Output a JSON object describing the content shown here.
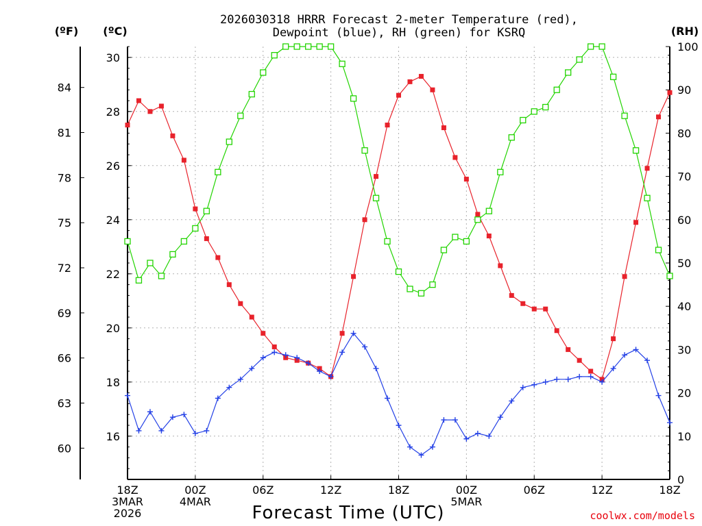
{
  "chart_data": {
    "type": "line",
    "title_lines": [
      "2026030318 HRRR Forecast 2-meter Temperature (red),",
      "Dewpoint (blue), RH (green) for KSRQ"
    ],
    "xlabel": "Forecast Time (UTC)",
    "unit_labels": {
      "fahrenheit": "(ºF)",
      "celsius": "(ºC)",
      "rh": "(RH)"
    },
    "credit": "coolwx.com/models",
    "x_tick_labels": [
      {
        "hour": 0,
        "lines": [
          "18Z",
          "3MAR",
          "2026"
        ]
      },
      {
        "hour": 6,
        "lines": [
          "00Z",
          "4MAR"
        ]
      },
      {
        "hour": 12,
        "lines": [
          "06Z"
        ]
      },
      {
        "hour": 18,
        "lines": [
          "12Z"
        ]
      },
      {
        "hour": 24,
        "lines": [
          "18Z"
        ]
      },
      {
        "hour": 30,
        "lines": [
          "00Z",
          "5MAR"
        ]
      },
      {
        "hour": 36,
        "lines": [
          "06Z"
        ]
      },
      {
        "hour": 42,
        "lines": [
          "12Z"
        ]
      },
      {
        "hour": 48,
        "lines": [
          "18Z"
        ]
      }
    ],
    "x_range": [
      0,
      48
    ],
    "celsius_axis": {
      "range": [
        14.4,
        30.4
      ],
      "ticks": [
        16,
        18,
        20,
        22,
        24,
        26,
        28,
        30
      ]
    },
    "fahrenheit_axis": {
      "ticks": [
        60,
        63,
        66,
        69,
        72,
        75,
        78,
        81,
        84
      ]
    },
    "rh_axis": {
      "range": [
        0,
        100
      ],
      "ticks": [
        0,
        10,
        20,
        30,
        40,
        50,
        60,
        70,
        80,
        90,
        100
      ]
    },
    "series": [
      {
        "name": "Temperature",
        "color": "#e8222b",
        "marker": "filled-square",
        "axis": "celsius",
        "values": [
          27.5,
          28.4,
          28.0,
          28.2,
          27.1,
          26.2,
          24.4,
          23.3,
          22.6,
          21.6,
          20.9,
          20.4,
          19.8,
          19.3,
          18.9,
          18.8,
          18.7,
          18.5,
          18.2,
          19.8,
          21.9,
          24.0,
          25.6,
          27.5,
          28.6,
          29.1,
          29.3,
          28.8,
          27.4,
          26.3,
          25.5,
          24.2,
          23.4,
          22.3,
          21.2,
          20.9,
          20.7,
          20.7,
          19.9,
          19.2,
          18.8,
          18.4,
          18.1,
          19.6,
          21.9,
          23.9,
          25.9,
          27.8,
          28.7
        ]
      },
      {
        "name": "Dewpoint",
        "color": "#2340e6",
        "marker": "plus",
        "axis": "celsius",
        "values": [
          17.5,
          16.2,
          16.9,
          16.2,
          16.7,
          16.8,
          16.1,
          16.2,
          17.4,
          17.8,
          18.1,
          18.5,
          18.9,
          19.1,
          19.0,
          18.9,
          18.7,
          18.4,
          18.2,
          19.1,
          19.8,
          19.3,
          18.5,
          17.4,
          16.4,
          15.6,
          15.3,
          15.6,
          16.6,
          16.6,
          15.9,
          16.1,
          16.0,
          16.7,
          17.3,
          17.8,
          17.9,
          18.0,
          18.1,
          18.1,
          18.2,
          18.2,
          18.0,
          18.5,
          19.0,
          19.2,
          18.8,
          17.5,
          16.5
        ]
      },
      {
        "name": "RH",
        "color": "#22d400",
        "marker": "open-square",
        "axis": "rh",
        "values": [
          55,
          46,
          50,
          47,
          52,
          55,
          58,
          62,
          71,
          78,
          84,
          89,
          94,
          98,
          100,
          100,
          100,
          100,
          100,
          96,
          88,
          76,
          65,
          55,
          48,
          44,
          43,
          45,
          53,
          56,
          55,
          60,
          62,
          71,
          79,
          83,
          85,
          86,
          90,
          94,
          97,
          100,
          100,
          93,
          84,
          76,
          65,
          53,
          47
        ]
      }
    ]
  }
}
